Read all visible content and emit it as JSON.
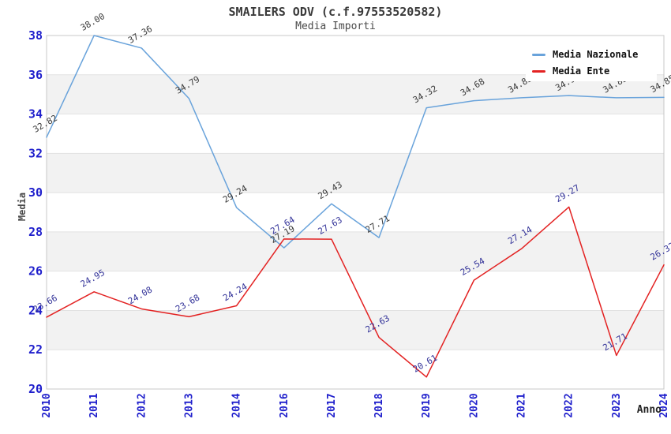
{
  "chart_data": {
    "type": "line",
    "title": "SMAILERS ODV (c.f.97553520582)",
    "subtitle": "Media Importi",
    "xlabel": "Anno",
    "ylabel": "Media",
    "ylim": [
      20,
      38
    ],
    "ytick_step": 2,
    "yticks": [
      20,
      22,
      24,
      26,
      28,
      30,
      32,
      34,
      36,
      38
    ],
    "grid": "horizontal-alternating-bands",
    "legend_position": "top-right",
    "categories": [
      "2010",
      "2011",
      "2012",
      "2013",
      "2014",
      "2016",
      "2017",
      "2018",
      "2019",
      "2020",
      "2021",
      "2022",
      "2023",
      "2024"
    ],
    "series": [
      {
        "name": "Media Nazionale",
        "color": "#69a3db",
        "label_color": "#3a3a3a",
        "values": [
          32.82,
          38.0,
          37.36,
          34.79,
          29.24,
          27.19,
          29.43,
          27.71,
          34.32,
          34.68,
          34.83,
          34.94,
          34.83,
          34.85
        ]
      },
      {
        "name": "Media Ente",
        "color": "#e32222",
        "label_color": "#333399",
        "values": [
          23.66,
          24.95,
          24.08,
          23.68,
          24.24,
          27.64,
          27.63,
          22.63,
          20.61,
          25.54,
          27.14,
          29.27,
          21.71,
          26.32
        ]
      }
    ],
    "data_label_rotation": -30,
    "x_tick_rotation": -90,
    "colors": {
      "tick_label": "#1f1fcc",
      "band_fill": "#f2f2f2",
      "grid_line": "#e2e2e2",
      "plot_border": "#c8c8c8",
      "title": "#3a3a3a"
    }
  }
}
